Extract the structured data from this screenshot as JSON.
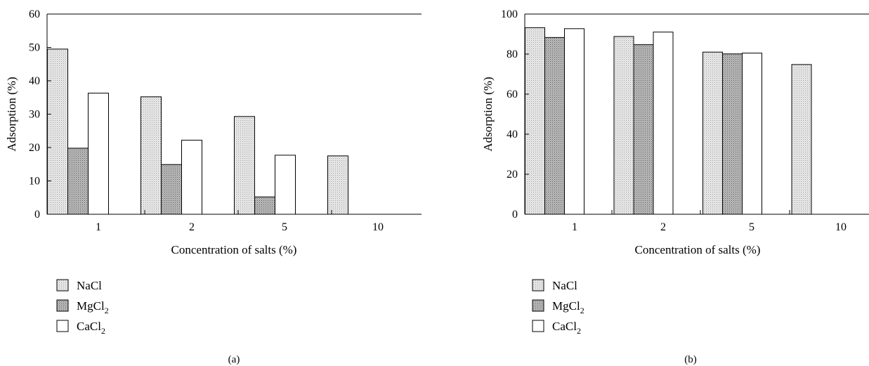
{
  "chart_data": [
    {
      "type": "bar",
      "panel_label": "(a)",
      "categories": [
        "1",
        "2",
        "5",
        "10"
      ],
      "xlabel": "Concentration of salts (%)",
      "ylabel": "Adsorption (%)",
      "ylim": [
        0,
        60
      ],
      "yticks": [
        "0",
        "10",
        "20",
        "30",
        "40",
        "50",
        "60"
      ],
      "grid": false,
      "legend_position": "bottom-left",
      "series": [
        {
          "name": "NaCl",
          "legend_main": "NaCl",
          "legend_sub": "",
          "pattern": "light-dots",
          "values": [
            49.5,
            35.2,
            29.3,
            17.5
          ]
        },
        {
          "name": "MgCl2",
          "legend_main": "MgCl",
          "legend_sub": "2",
          "pattern": "dark-dots",
          "values": [
            19.8,
            14.9,
            5.2,
            null
          ]
        },
        {
          "name": "CaCl2",
          "legend_main": "CaCl",
          "legend_sub": "2",
          "pattern": "white",
          "values": [
            36.3,
            22.2,
            17.7,
            null
          ]
        }
      ]
    },
    {
      "type": "bar",
      "panel_label": "(b)",
      "categories": [
        "1",
        "2",
        "5",
        "10"
      ],
      "xlabel": "Concentration of salts (%)",
      "ylabel": "Adsorption (%)",
      "ylim": [
        0,
        100
      ],
      "yticks": [
        "0",
        "20",
        "40",
        "60",
        "80",
        "100"
      ],
      "grid": false,
      "legend_position": "bottom-left",
      "series": [
        {
          "name": "NaCl",
          "legend_main": "NaCl",
          "legend_sub": "",
          "pattern": "light-dots",
          "values": [
            93.2,
            88.8,
            81.0,
            74.8
          ]
        },
        {
          "name": "MgCl2",
          "legend_main": "MgCl",
          "legend_sub": "2",
          "pattern": "dark-dots",
          "values": [
            88.3,
            84.7,
            80.1,
            null
          ]
        },
        {
          "name": "CaCl2",
          "legend_main": "CaCl",
          "legend_sub": "2",
          "pattern": "white",
          "values": [
            92.7,
            91.0,
            80.5,
            null
          ]
        }
      ]
    }
  ]
}
